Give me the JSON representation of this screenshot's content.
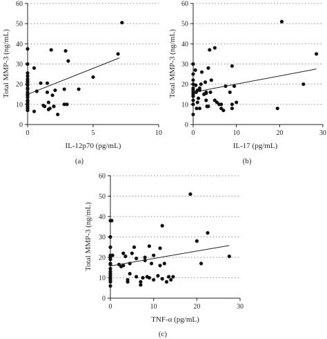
{
  "chart_data": [
    {
      "type": "scatter",
      "panel_label": "(a)",
      "xlabel": "IL-12p70 (pg/mL)",
      "ylabel": "Total MMP-3 (ng/mL)",
      "xlim": [
        0,
        10
      ],
      "ylim": [
        0,
        60
      ],
      "xticks": [
        "0",
        "5",
        "10"
      ],
      "yticks": [
        "0",
        "10",
        "20",
        "30",
        "40",
        "50",
        "60"
      ],
      "grid": "dotted horizontal lines",
      "trendline": {
        "x": [
          0.1,
          7.0
        ],
        "y": [
          15.2,
          33.0
        ]
      },
      "x": [
        0,
        0,
        0,
        0,
        0,
        0,
        0,
        0,
        0,
        0,
        0,
        0,
        0,
        0,
        0,
        0,
        0,
        0,
        0,
        0,
        0,
        0,
        0.5,
        0.7,
        0.5,
        1.0,
        1.2,
        1.3,
        1.5,
        1.5,
        1.6,
        1.7,
        1.8,
        1.6,
        1.9,
        2.1,
        2.0,
        2.3,
        2.8,
        2.9,
        3.0,
        2.8,
        3.1,
        3.9,
        5.0,
        6.9,
        7.2
      ],
      "y": [
        37.5,
        30,
        25.5,
        24,
        22.5,
        21.5,
        21,
        20,
        19.5,
        18,
        17.5,
        16,
        15,
        14.5,
        13.5,
        12,
        11.5,
        10.5,
        10,
        9,
        8,
        7,
        28,
        16.5,
        6.5,
        20.5,
        9.5,
        9,
        16,
        20.5,
        7.5,
        8,
        37,
        11,
        14.5,
        17,
        9,
        5,
        10,
        36.5,
        10,
        17.5,
        31.5,
        17.5,
        23.5,
        35,
        50.5
      ]
    },
    {
      "type": "scatter",
      "panel_label": "(b)",
      "xlabel": "IL-17 (pg/mL)",
      "ylabel": "Total MMP-3 (ng/mL)",
      "xlim": [
        0,
        30
      ],
      "ylim": [
        0,
        60
      ],
      "xticks": [
        "0",
        "10",
        "20",
        "30"
      ],
      "yticks": [
        "0",
        "10",
        "20",
        "30",
        "40",
        "50",
        "60"
      ],
      "grid": "dotted horizontal lines",
      "trendline": {
        "x": [
          0,
          28.5
        ],
        "y": [
          16.0,
          27.5
        ]
      },
      "x": [
        0,
        0,
        0,
        0,
        0,
        0,
        0,
        0,
        0,
        0,
        0,
        0,
        0.5,
        0.6,
        0.7,
        0.8,
        1,
        1,
        1.2,
        1.5,
        1.5,
        1.8,
        2,
        2.5,
        2.8,
        3,
        3,
        3.2,
        3.5,
        3.8,
        4,
        4.2,
        5,
        5.5,
        6,
        6.5,
        7,
        7.5,
        8.5,
        9,
        9,
        9.5,
        10,
        1.5,
        3,
        3.5,
        5,
        6.5,
        9,
        19.5,
        20.5,
        25.5,
        28.5
      ],
      "y": [
        30,
        25,
        22,
        20,
        18,
        17,
        16,
        15,
        14,
        12,
        10,
        5,
        27,
        19.5,
        16,
        8,
        17,
        11,
        13,
        18,
        8,
        20,
        26,
        15,
        21,
        12,
        15.5,
        9,
        28,
        37,
        16,
        22,
        38,
        11,
        10,
        8,
        7,
        19,
        16,
        10,
        8,
        19,
        11,
        17,
        16,
        9,
        12,
        10,
        29,
        8,
        51,
        20,
        35
      ]
    },
    {
      "type": "scatter",
      "panel_label": "(c)",
      "xlabel": "TNF-α (pg/mL)",
      "ylabel": "Total MMP-3 (ng/mL)",
      "xlim": [
        0,
        30
      ],
      "ylim": [
        0,
        60
      ],
      "xticks": [
        "0",
        "10",
        "20",
        "30"
      ],
      "yticks": [
        "0",
        "10",
        "20",
        "30",
        "40",
        "50",
        "60"
      ],
      "grid": "dotted horizontal lines",
      "trendline": {
        "x": [
          0,
          27.5
        ],
        "y": [
          15.8,
          25.8
        ]
      },
      "x": [
        0,
        0,
        0,
        0,
        0,
        0,
        0,
        0,
        0,
        0,
        0,
        0,
        0,
        0,
        0,
        0,
        0.3,
        0.5,
        2,
        2.5,
        3,
        3,
        3.5,
        4,
        4,
        4.5,
        4.5,
        5,
        5.5,
        6,
        6,
        7,
        7,
        7.5,
        8,
        8,
        8.5,
        9,
        9,
        9.5,
        10,
        10,
        11,
        11.5,
        11.5,
        12,
        12,
        12.5,
        13,
        13.5,
        14,
        14.5,
        18.5,
        20,
        21,
        22.5,
        27.5
      ],
      "y": [
        38,
        30,
        25,
        21,
        20,
        19,
        17,
        16.5,
        14.5,
        13,
        12,
        11,
        10,
        9,
        8,
        6,
        38,
        21,
        16.5,
        15.5,
        16,
        22,
        20.5,
        9,
        8,
        17,
        12,
        22,
        25,
        19.5,
        10.5,
        8,
        6.5,
        10,
        20,
        18.5,
        10.5,
        25.5,
        10,
        17,
        21,
        9,
        11,
        24.5,
        16,
        35.5,
        9.5,
        17,
        8,
        10.5,
        9,
        10.5,
        51,
        28,
        17,
        32,
        20.5
      ]
    }
  ]
}
